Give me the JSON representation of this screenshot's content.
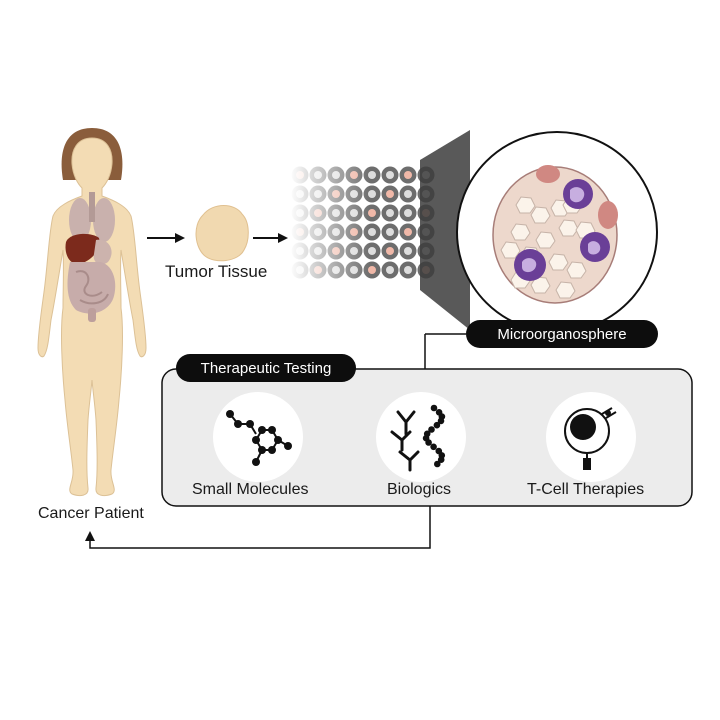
{
  "labels": {
    "tumor_tissue": "Tumor Tissue",
    "microorganosphere": "Microorganosphere",
    "therapeutic_testing": "Therapeutic Testing",
    "small_molecules": "Small Molecules",
    "biologics": "Biologics",
    "t_cell_therapies": "T-Cell Therapies",
    "cancer_patient": "Cancer Patient"
  },
  "icons": {
    "patient": "human-body-icon",
    "tissue": "tumor-tissue-icon",
    "array": "microorganosphere-array-icon",
    "zoom": "organoid-cells-icon",
    "small_molecule": "molecule-icon",
    "biologic": "antibody-icon",
    "t_cell": "t-cell-icon"
  },
  "colors": {
    "skin": "#f3dcb4",
    "hair": "#8a5d3b",
    "panel": "#ececec",
    "pill": "#0d0d0d",
    "organoid_cell": "#6a3f97"
  }
}
